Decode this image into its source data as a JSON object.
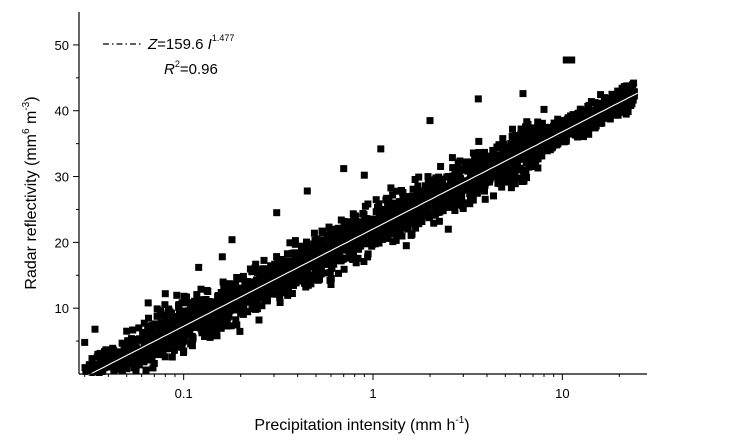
{
  "chart_data": {
    "type": "scatter",
    "x_scale": "log",
    "xlim": [
      0.028,
      28
    ],
    "ylim": [
      0,
      55
    ],
    "x_ticks": [
      {
        "value": 0.1,
        "label": "0.1"
      },
      {
        "value": 1,
        "label": "1"
      },
      {
        "value": 10,
        "label": "10"
      }
    ],
    "y_ticks": [
      {
        "value": 10,
        "label": "10"
      },
      {
        "value": 20,
        "label": "20"
      },
      {
        "value": 30,
        "label": "30"
      },
      {
        "value": 40,
        "label": "40"
      },
      {
        "value": 50,
        "label": "50"
      }
    ],
    "xlabel": {
      "main": "Precipitation intensity (mm h",
      "sup": "-1",
      "close": ")"
    },
    "ylabel": {
      "main": "Radar reflectivity (mm",
      "sup1": "6",
      "mid": " m",
      "sup2": "-3",
      "close": ")"
    },
    "fit": {
      "coefficient": 159.6,
      "exponent": 1.477,
      "equation": {
        "lhs": "Z",
        "eq": "=159.6 ",
        "var": "I",
        "exp": "1.477"
      },
      "r2": {
        "symbol": "R",
        "sup": "2",
        "value": "=0.96"
      }
    },
    "grid": false,
    "legend_position": "top-left",
    "point_count": 2600,
    "band_halfwidth_dbz": 3.2,
    "outliers": [
      {
        "x": 10.5,
        "y": 47.7
      },
      {
        "x": 11.2,
        "y": 47.7
      },
      {
        "x": 0.03,
        "y": 4.8
      },
      {
        "x": 0.034,
        "y": 6.8
      },
      {
        "x": 0.05,
        "y": 6.5
      },
      {
        "x": 0.065,
        "y": 10.8
      },
      {
        "x": 0.08,
        "y": 12.2
      },
      {
        "x": 0.12,
        "y": 16.2
      },
      {
        "x": 0.18,
        "y": 20.4
      },
      {
        "x": 0.31,
        "y": 24.5
      },
      {
        "x": 0.45,
        "y": 27.8
      },
      {
        "x": 0.7,
        "y": 31.2
      },
      {
        "x": 1.1,
        "y": 34.2
      },
      {
        "x": 2.0,
        "y": 38.5
      },
      {
        "x": 3.6,
        "y": 41.8
      },
      {
        "x": 6.2,
        "y": 42.6
      },
      {
        "x": 8.0,
        "y": 40.2
      },
      {
        "x": 4.5,
        "y": 33.2
      },
      {
        "x": 7.5,
        "y": 35.0
      },
      {
        "x": 15.5,
        "y": 39.8
      },
      {
        "x": 20.5,
        "y": 42.0
      },
      {
        "x": 24.0,
        "y": 42.8
      },
      {
        "x": 2.5,
        "y": 22.0
      },
      {
        "x": 1.5,
        "y": 19.5
      },
      {
        "x": 0.6,
        "y": 13.6
      },
      {
        "x": 0.25,
        "y": 8.2
      },
      {
        "x": 0.15,
        "y": 5.8
      },
      {
        "x": 0.1,
        "y": 3.5
      },
      {
        "x": 0.07,
        "y": 1.6
      },
      {
        "x": 0.05,
        "y": 0.8
      },
      {
        "x": 0.9,
        "y": 30.2
      },
      {
        "x": 0.16,
        "y": 17.8
      }
    ],
    "colors": {
      "points": "#000000",
      "fit_line": "#ffffff",
      "legend_line": "#000000",
      "axes": "#000000"
    }
  }
}
